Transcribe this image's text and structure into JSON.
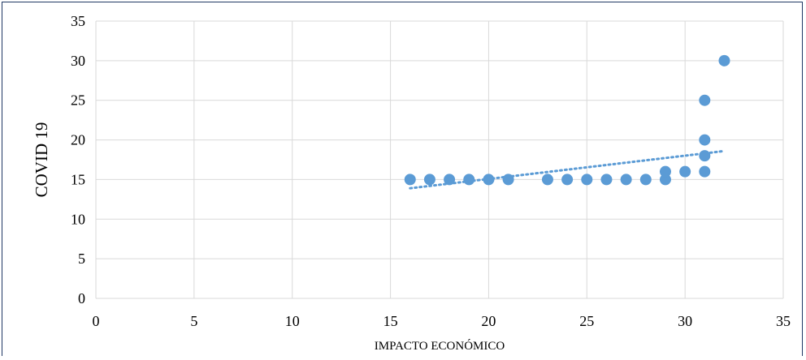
{
  "chart_data": {
    "type": "scatter",
    "title": "",
    "xlabel": "IMPACTO ECONÓMICO",
    "ylabel": "COVID 19",
    "xlim": [
      0,
      35
    ],
    "ylim": [
      0,
      35
    ],
    "xticks": [
      0,
      5,
      10,
      15,
      20,
      25,
      30,
      35
    ],
    "yticks": [
      0,
      5,
      10,
      15,
      20,
      25,
      30,
      35
    ],
    "grid": true,
    "legend": "none",
    "series": [
      {
        "color": "#5b9bd5",
        "points": [
          {
            "x": 16,
            "y": 15
          },
          {
            "x": 17,
            "y": 15
          },
          {
            "x": 18,
            "y": 15
          },
          {
            "x": 19,
            "y": 15
          },
          {
            "x": 20,
            "y": 15
          },
          {
            "x": 21,
            "y": 15
          },
          {
            "x": 23,
            "y": 15
          },
          {
            "x": 24,
            "y": 15
          },
          {
            "x": 25,
            "y": 15
          },
          {
            "x": 26,
            "y": 15
          },
          {
            "x": 27,
            "y": 15
          },
          {
            "x": 28,
            "y": 15
          },
          {
            "x": 29,
            "y": 15
          },
          {
            "x": 29,
            "y": 16
          },
          {
            "x": 30,
            "y": 16
          },
          {
            "x": 31,
            "y": 16
          },
          {
            "x": 31,
            "y": 18
          },
          {
            "x": 31,
            "y": 20
          },
          {
            "x": 31,
            "y": 25
          },
          {
            "x": 32,
            "y": 30
          }
        ]
      }
    ],
    "trendline": {
      "type": "linear",
      "style": "dotted",
      "color": "#5b9bd5",
      "from": {
        "x": 16,
        "y": 13.9
      },
      "to": {
        "x": 32,
        "y": 18.6
      }
    }
  }
}
